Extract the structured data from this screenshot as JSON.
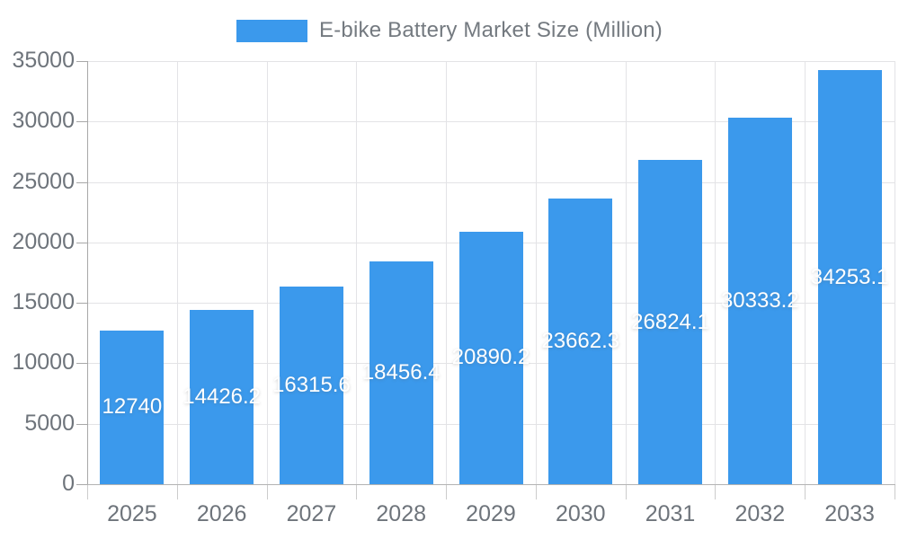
{
  "chart_data": {
    "type": "bar",
    "title": "",
    "legend": {
      "label": "E-bike Battery Market Size (Million)",
      "position": "top-center"
    },
    "categories": [
      "2025",
      "2026",
      "2027",
      "2028",
      "2029",
      "2030",
      "2031",
      "2032",
      "2033"
    ],
    "values": [
      12740,
      14426.2,
      16315.6,
      18456.4,
      20890.2,
      23662.3,
      26824.1,
      30333.2,
      34253.1
    ],
    "value_labels": [
      "12740",
      "14426.2",
      "16315.6",
      "18456.4",
      "20890.2",
      "23662.3",
      "26824.1",
      "30333.2",
      "34253.1"
    ],
    "xlabel": "",
    "ylabel": "",
    "ylim": [
      0,
      35000
    ],
    "y_ticks": [
      0,
      5000,
      10000,
      15000,
      20000,
      25000,
      30000,
      35000
    ],
    "grid": true,
    "value_label_position": "inside-center",
    "colors": {
      "bar": "#3B99EC",
      "value_label": "#FFFFFF",
      "axis_text": "#6E747B",
      "legend_text": "#747A80",
      "gridline": "#E3E3E6",
      "axis_line": "#AAAAAA"
    }
  }
}
